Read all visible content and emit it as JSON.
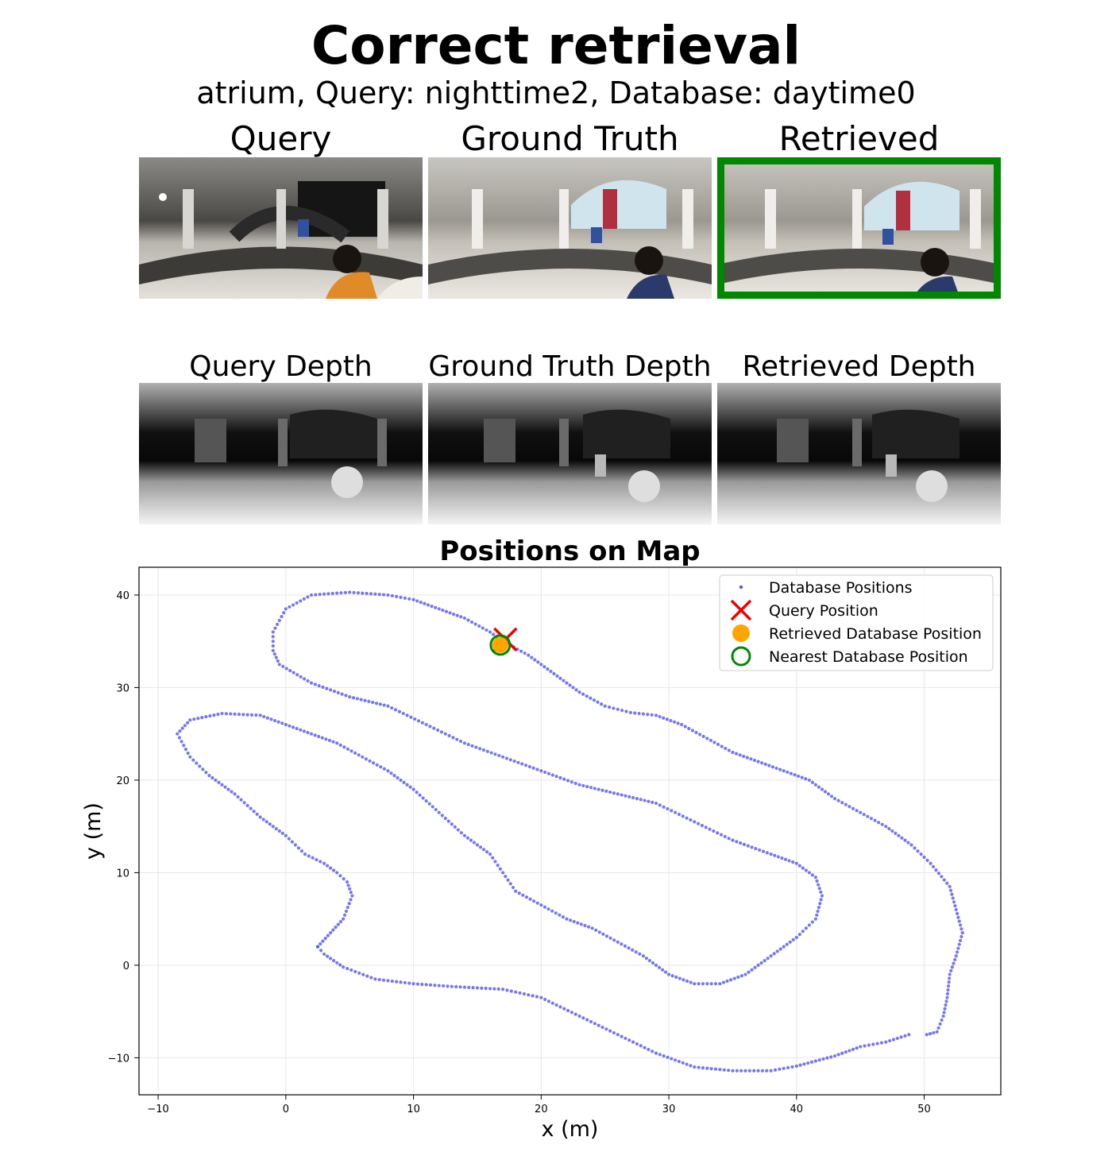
{
  "header": {
    "title": "Correct retrieval",
    "subtitle": "atrium, Query: nighttime2, Database: daytime0"
  },
  "panels": {
    "rgb": [
      "Query",
      "Ground Truth",
      "Retrieved"
    ],
    "depth": [
      "Query Depth",
      "Ground Truth Depth",
      "Retrieved Depth"
    ]
  },
  "colors": {
    "database_points": "#5555ee",
    "query_marker": "#ee0000",
    "retrieved_marker": "#ffa500",
    "nearest_marker": "#008800",
    "retrieved_frame": "#008800"
  },
  "chart_data": {
    "type": "scatter",
    "title": "Positions on Map",
    "xlabel": "x (m)",
    "ylabel": "y (m)",
    "xlim": [
      -11.5,
      56
    ],
    "ylim": [
      -14,
      43
    ],
    "xticks": [
      -10,
      0,
      10,
      20,
      30,
      40,
      50
    ],
    "yticks": [
      -10,
      0,
      10,
      20,
      30,
      40
    ],
    "xtick_labels": [
      "−10",
      "0",
      "10",
      "20",
      "30",
      "40",
      "50"
    ],
    "ytick_labels": [
      "−10",
      "0",
      "10",
      "20",
      "30",
      "40"
    ],
    "grid": true,
    "legend_position": "top-right",
    "legend": [
      "Database Positions",
      "Query Position",
      "Retrieved Database Position",
      "Nearest Database Position"
    ],
    "database_path": [
      [
        2.5,
        2
      ],
      [
        3.5,
        3.5
      ],
      [
        4.5,
        5
      ],
      [
        5.2,
        7.5
      ],
      [
        4.8,
        9
      ],
      [
        4,
        10
      ],
      [
        3,
        11
      ],
      [
        1.5,
        12
      ],
      [
        0,
        14
      ],
      [
        -2,
        16
      ],
      [
        -4,
        18.5
      ],
      [
        -6,
        20.5
      ],
      [
        -7.5,
        22.5
      ],
      [
        -8.5,
        25
      ],
      [
        -7.5,
        26.5
      ],
      [
        -5,
        27.2
      ],
      [
        -2,
        27
      ],
      [
        0,
        26
      ],
      [
        2,
        25
      ],
      [
        4,
        24
      ],
      [
        6,
        22.5
      ],
      [
        8,
        21
      ],
      [
        10,
        19
      ],
      [
        12,
        16.5
      ],
      [
        14,
        14
      ],
      [
        16,
        12
      ],
      [
        17,
        10
      ],
      [
        18,
        8
      ],
      [
        20,
        6.5
      ],
      [
        22,
        5
      ],
      [
        24,
        4
      ],
      [
        26,
        2.5
      ],
      [
        28,
        1
      ],
      [
        30,
        -1
      ],
      [
        32,
        -2
      ],
      [
        34,
        -2
      ],
      [
        36,
        -1
      ],
      [
        38,
        1
      ],
      [
        40,
        3
      ],
      [
        41.5,
        5
      ],
      [
        42,
        7.5
      ],
      [
        41.5,
        9.5
      ],
      [
        40,
        11
      ],
      [
        38,
        12
      ],
      [
        35,
        13.5
      ],
      [
        32,
        15.5
      ],
      [
        29,
        17.5
      ],
      [
        26,
        18.5
      ],
      [
        23,
        19.5
      ],
      [
        20,
        21
      ],
      [
        17,
        22.5
      ],
      [
        14,
        24
      ],
      [
        11,
        26
      ],
      [
        8,
        28
      ],
      [
        5,
        29
      ],
      [
        2,
        30.5
      ],
      [
        -0.5,
        32.5
      ],
      [
        -1,
        34
      ],
      [
        -1,
        36
      ],
      [
        0,
        38.5
      ],
      [
        2,
        40
      ],
      [
        5,
        40.3
      ],
      [
        8,
        40
      ],
      [
        10,
        39.5
      ],
      [
        12,
        38.5
      ],
      [
        14,
        37.5
      ],
      [
        16,
        36
      ],
      [
        17,
        35
      ],
      [
        19,
        33.5
      ],
      [
        21,
        31.5
      ],
      [
        23,
        29.5
      ],
      [
        25,
        28
      ],
      [
        27,
        27.3
      ],
      [
        29,
        27
      ],
      [
        31,
        26
      ],
      [
        33,
        24.5
      ],
      [
        35,
        23
      ],
      [
        37,
        22
      ],
      [
        39,
        21
      ],
      [
        41,
        20
      ],
      [
        43,
        18
      ],
      [
        45,
        16.5
      ],
      [
        47,
        15
      ],
      [
        49,
        13
      ],
      [
        50.5,
        11
      ],
      [
        52,
        8.5
      ],
      [
        52.5,
        6
      ],
      [
        53,
        3.5
      ],
      [
        52.5,
        1
      ],
      [
        52,
        -1
      ],
      [
        51.8,
        -3.5
      ],
      [
        51.5,
        -5.5
      ],
      [
        51,
        -7.2
      ],
      [
        50.2,
        -7.5
      ]
    ],
    "database_tail": [
      [
        48.8,
        -7.5
      ],
      [
        47,
        -8.3
      ],
      [
        45,
        -8.8
      ],
      [
        43,
        -9.8
      ],
      [
        40,
        -10.9
      ],
      [
        38,
        -11.4
      ],
      [
        35,
        -11.4
      ],
      [
        32,
        -11
      ],
      [
        29,
        -9.5
      ],
      [
        26,
        -7.5
      ],
      [
        23,
        -5.5
      ],
      [
        20,
        -3.5
      ],
      [
        17,
        -2.6
      ],
      [
        13,
        -2.3
      ],
      [
        10,
        -2
      ],
      [
        7,
        -1.5
      ],
      [
        4.5,
        -0.2
      ],
      [
        3,
        1.2
      ],
      [
        2.5,
        2
      ]
    ],
    "query_position": [
      17.2,
      35.2
    ],
    "retrieved_position": [
      16.8,
      34.6
    ],
    "nearest_position": [
      16.8,
      34.6
    ]
  }
}
